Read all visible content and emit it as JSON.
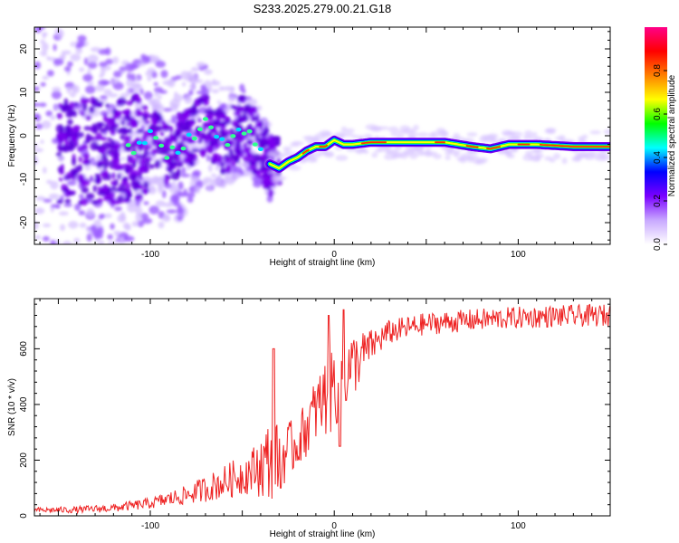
{
  "title": "S233.2025.279.00.21.G18",
  "chart_data": [
    {
      "type": "heatmap",
      "xlabel": "Height of straight line (km)",
      "ylabel": "Frequency (Hz)",
      "xlim": [
        -163,
        150
      ],
      "ylim": [
        -25,
        25
      ],
      "x_ticks": [
        -100,
        0,
        100
      ],
      "y_ticks": [
        20,
        10,
        0,
        -10,
        -20
      ],
      "colorbar": {
        "label": "Normalized spectral amplitude",
        "range": [
          0,
          1
        ],
        "ticks": [
          "0.0",
          "0.2",
          "0.4",
          "0.6",
          "0.8"
        ],
        "colors": [
          "#ffffff",
          "#c8a8ff",
          "#7a00ff",
          "#0000ff",
          "#00ffff",
          "#00ff00",
          "#ffff00",
          "#ff8000",
          "#ff0000",
          "#ff0088"
        ]
      },
      "ridge": [
        {
          "x": -110,
          "f": -3.5
        },
        {
          "x": -100,
          "f": 0
        },
        {
          "x": -90,
          "f": -4
        },
        {
          "x": -80,
          "f": -1
        },
        {
          "x": -70,
          "f": 3
        },
        {
          "x": -60,
          "f": -2
        },
        {
          "x": -50,
          "f": 2
        },
        {
          "x": -40,
          "f": -3
        },
        {
          "x": -35,
          "f": -6.5
        },
        {
          "x": -30,
          "f": -7.5
        },
        {
          "x": -25,
          "f": -6
        },
        {
          "x": -20,
          "f": -5
        },
        {
          "x": -15,
          "f": -3.5
        },
        {
          "x": -10,
          "f": -2.5
        },
        {
          "x": -5,
          "f": -2.5
        },
        {
          "x": 0,
          "f": -1
        },
        {
          "x": 5,
          "f": -2
        },
        {
          "x": 10,
          "f": -2
        },
        {
          "x": 20,
          "f": -1.5
        },
        {
          "x": 40,
          "f": -1.5
        },
        {
          "x": 60,
          "f": -1.5
        },
        {
          "x": 75,
          "f": -2.5
        },
        {
          "x": 85,
          "f": -3
        },
        {
          "x": 95,
          "f": -2
        },
        {
          "x": 110,
          "f": -2
        },
        {
          "x": 130,
          "f": -2.5
        },
        {
          "x": 150,
          "f": -2.5
        }
      ]
    },
    {
      "type": "line",
      "xlabel": "Height of straight line (km)",
      "ylabel": "SNR (10 * v/v)",
      "xlim": [
        -163,
        150
      ],
      "ylim": [
        0,
        780
      ],
      "x_ticks": [
        -100,
        0,
        100
      ],
      "y_ticks": [
        0,
        200,
        400,
        600
      ],
      "series": [
        {
          "color": "#ee2222",
          "envelope": [
            {
              "x": -163,
              "mean": 20,
              "amp": 10
            },
            {
              "x": -140,
              "mean": 22,
              "amp": 12
            },
            {
              "x": -120,
              "mean": 28,
              "amp": 15
            },
            {
              "x": -100,
              "mean": 45,
              "amp": 20
            },
            {
              "x": -80,
              "mean": 75,
              "amp": 35
            },
            {
              "x": -60,
              "mean": 120,
              "amp": 60
            },
            {
              "x": -45,
              "mean": 160,
              "amp": 80
            },
            {
              "x": -35,
              "mean": 200,
              "amp": 150
            },
            {
              "x": -30,
              "mean": 210,
              "amp": 120
            },
            {
              "x": -20,
              "mean": 260,
              "amp": 90
            },
            {
              "x": -10,
              "mean": 380,
              "amp": 120
            },
            {
              "x": 0,
              "mean": 470,
              "amp": 170
            },
            {
              "x": 10,
              "mean": 540,
              "amp": 120
            },
            {
              "x": 20,
              "mean": 610,
              "amp": 60
            },
            {
              "x": 30,
              "mean": 660,
              "amp": 45
            },
            {
              "x": 50,
              "mean": 690,
              "amp": 40
            },
            {
              "x": 80,
              "mean": 705,
              "amp": 40
            },
            {
              "x": 110,
              "mean": 715,
              "amp": 40
            },
            {
              "x": 150,
              "mean": 720,
              "amp": 40
            }
          ],
          "peaks": [
            {
              "x": -33,
              "y": 600
            },
            {
              "x": -29,
              "y": 100
            },
            {
              "x": -3,
              "y": 720
            },
            {
              "x": 5,
              "y": 740
            },
            {
              "x": 3,
              "y": 250
            }
          ]
        }
      ]
    }
  ]
}
